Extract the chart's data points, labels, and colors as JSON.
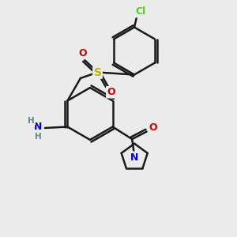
{
  "bg_color": "#ebebeb",
  "bond_color": "#1a1a1a",
  "bond_width": 1.8,
  "atom_colors": {
    "N": "#0000cc",
    "O": "#cc0000",
    "S": "#b8b800",
    "Cl": "#55cc22",
    "C": "#1a1a1a",
    "H": "#5a8a8a"
  },
  "font_size_atom": 9,
  "font_size_small": 7.5
}
